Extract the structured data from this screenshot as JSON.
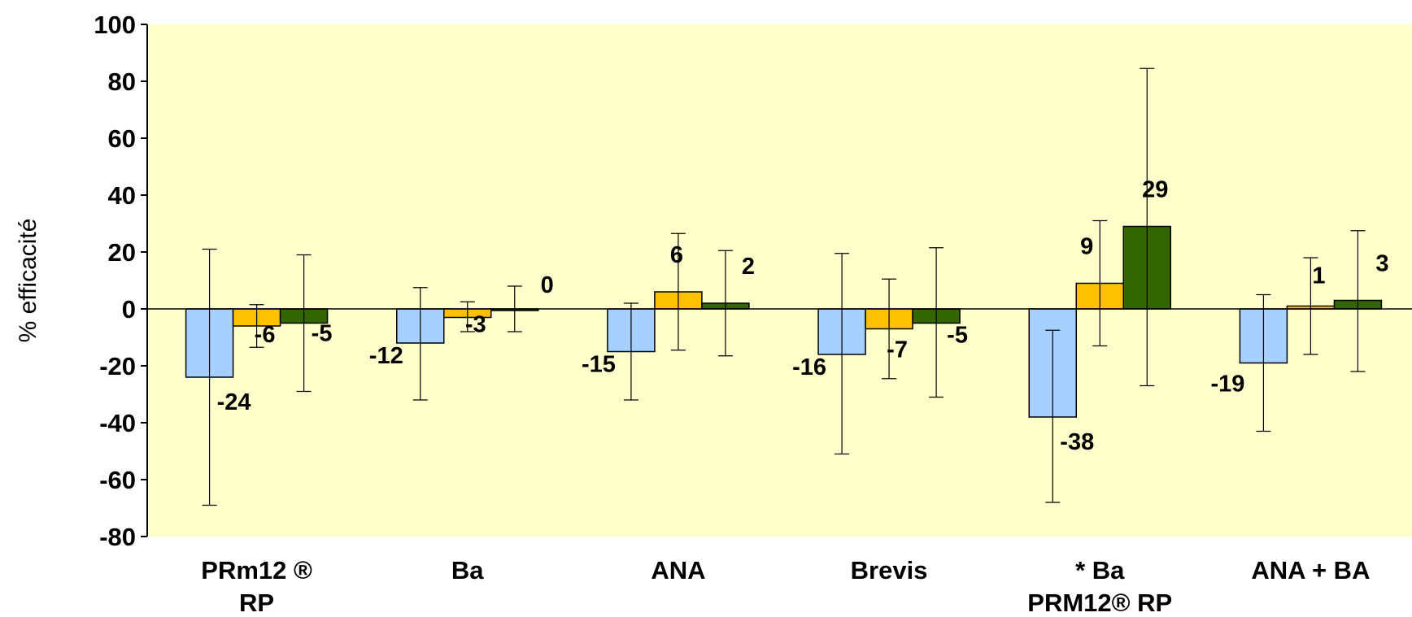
{
  "chart_data": {
    "type": "bar",
    "title": "",
    "xlabel": "",
    "ylabel": "% efficacité",
    "ylim": [
      -80,
      100
    ],
    "yticks": [
      100,
      80,
      60,
      40,
      20,
      0,
      -20,
      -40,
      -60,
      -80
    ],
    "grid": false,
    "legend": "none",
    "categories": [
      [
        "PRm12 ®",
        "RP"
      ],
      [
        "Ba"
      ],
      [
        "ANA"
      ],
      [
        "Brevis"
      ],
      [
        "* Ba",
        "PRM12® RP"
      ],
      [
        "ANA + BA"
      ]
    ],
    "series": [
      {
        "color": "#a6d0ff",
        "values": [
          -24,
          -12,
          -15,
          -16,
          -38,
          -19
        ],
        "errors": [
          [
            -69,
            21
          ],
          [
            -32,
            7.5
          ],
          [
            -32,
            2
          ],
          [
            -51,
            19.5
          ],
          [
            -68,
            -7.5
          ],
          [
            -43,
            5
          ]
        ]
      },
      {
        "color": "#ffc000",
        "values": [
          -6,
          -3,
          6,
          -7,
          9,
          1
        ],
        "errors": [
          [
            -13.5,
            1.5
          ],
          [
            -8,
            2.5
          ],
          [
            -14.5,
            26.5
          ],
          [
            -24.5,
            10.5
          ],
          [
            -13,
            31
          ],
          [
            -16,
            18
          ]
        ]
      },
      {
        "color": "#336600",
        "values": [
          -5,
          0,
          2,
          -5,
          29,
          3
        ],
        "errors": [
          [
            -29,
            19
          ],
          [
            -8,
            8
          ],
          [
            -16.5,
            20.5
          ],
          [
            -31,
            21.5
          ],
          [
            -27,
            84.5
          ],
          [
            -22,
            27.5
          ]
        ]
      }
    ],
    "data_labels": [
      [
        "-24",
        "-12",
        "-15",
        "-16",
        "-38",
        "-19"
      ],
      [
        "-6",
        "-3",
        "6",
        "-7",
        "9",
        "1"
      ],
      [
        "-5",
        "0",
        "2",
        "-5",
        "29",
        "3"
      ]
    ]
  },
  "colors": {
    "plot_background": "#ffffcc",
    "axis": "#000000"
  }
}
